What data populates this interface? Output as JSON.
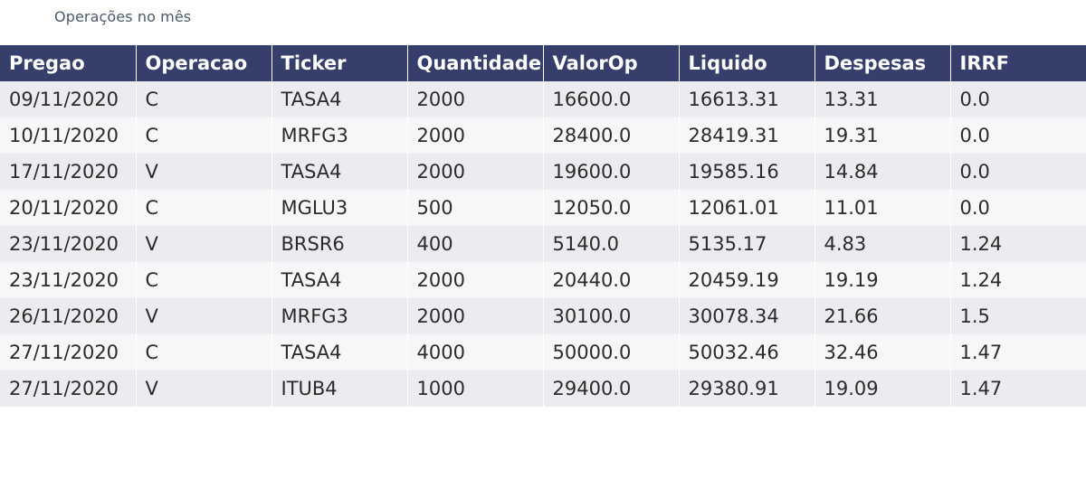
{
  "title": "Operações no mês",
  "chart_data": {
    "type": "table",
    "title": "Operações no mês",
    "columns": [
      "Pregao",
      "Operacao",
      "Ticker",
      "Quantidade",
      "ValorOp",
      "Liquido",
      "Despesas",
      "IRRF"
    ],
    "rows": [
      [
        "09/11/2020",
        "C",
        "TASA4",
        "2000",
        "16600.0",
        "16613.31",
        "13.31",
        "0.0"
      ],
      [
        "10/11/2020",
        "C",
        "MRFG3",
        "2000",
        "28400.0",
        "28419.31",
        "19.31",
        "0.0"
      ],
      [
        "17/11/2020",
        "V",
        "TASA4",
        "2000",
        "19600.0",
        "19585.16",
        "14.84",
        "0.0"
      ],
      [
        "20/11/2020",
        "C",
        "MGLU3",
        "500",
        "12050.0",
        "12061.01",
        "11.01",
        "0.0"
      ],
      [
        "23/11/2020",
        "V",
        "BRSR6",
        "400",
        "5140.0",
        "5135.17",
        "4.83",
        "1.24"
      ],
      [
        "23/11/2020",
        "C",
        "TASA4",
        "2000",
        "20440.0",
        "20459.19",
        "19.19",
        "1.24"
      ],
      [
        "26/11/2020",
        "V",
        "MRFG3",
        "2000",
        "30100.0",
        "30078.34",
        "21.66",
        "1.5"
      ],
      [
        "27/11/2020",
        "C",
        "TASA4",
        "4000",
        "50000.0",
        "50032.46",
        "32.46",
        "1.47"
      ],
      [
        "27/11/2020",
        "V",
        "ITUB4",
        "1000",
        "29400.0",
        "29380.91",
        "19.09",
        "1.47"
      ]
    ]
  },
  "colors": {
    "header_bg": "#363e6b",
    "header_text": "#ffffff",
    "row_odd": "#ebecf0",
    "row_even": "#f6f7f9",
    "title_text": "#4a5a6e"
  }
}
